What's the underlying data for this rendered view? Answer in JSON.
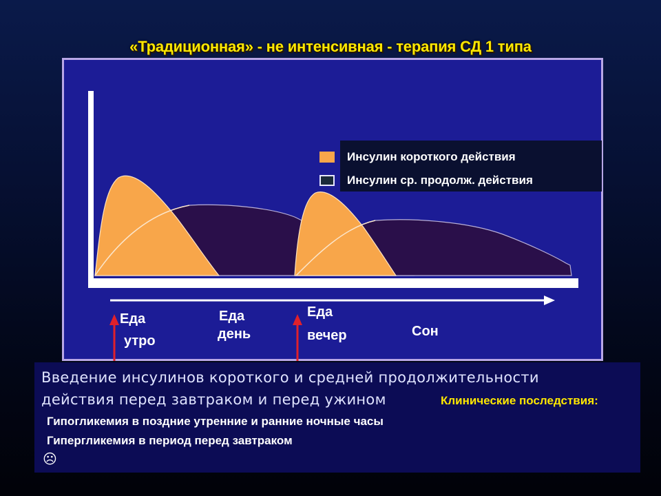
{
  "title": "«Традиционная» - не интенсивная - терапия СД 1 типа",
  "legend": {
    "short": {
      "label": "Инсулин короткого действия",
      "color": "#f8a64a"
    },
    "medium": {
      "label": "Инсулин ср. продолж. действия",
      "color": "#2a0f4a"
    }
  },
  "meals": {
    "morning": {
      "line1": "Еда",
      "line2": "утро"
    },
    "day": {
      "line1": "Еда",
      "line2": "день"
    },
    "evening": {
      "line1": "Еда",
      "line2": "вечер"
    },
    "sleep": {
      "line1": "Сон"
    }
  },
  "colors": {
    "panel": "#1c1c96",
    "arrow": "#e0212b",
    "axis": "#ffffff",
    "title": "#ffe800"
  },
  "info": {
    "line1": "Введение инсулинов короткого и средней продолжительности",
    "line2": "действия перед завтраком и перед ужином",
    "consequences": "Клинические последствия:",
    "item1": "Гипогликемия в поздние утренние  и ранние ночные часы",
    "item2": "Гипергликемия в период перед завтраком",
    "smiley": "☹"
  }
}
